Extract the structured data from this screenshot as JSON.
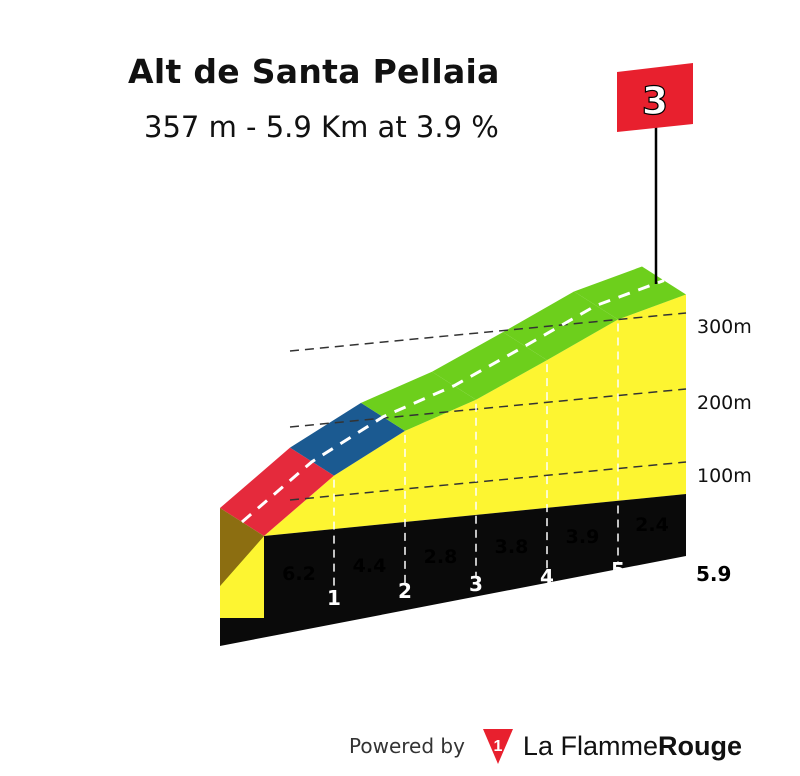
{
  "title": "Alt de Santa Pellaia",
  "subtitle": "357 m - 5.9 Km at 3.9 %",
  "category_flag": "3",
  "footer": {
    "powered_by": "Powered by",
    "brand_part1": "La Flamme",
    "brand_part2": "Rouge",
    "logo_mark": "1"
  },
  "colors": {
    "yellow": "#fdf531",
    "red": "#e52a3c",
    "blue": "#1b5a91",
    "green": "#6dcf1c",
    "flag": "#e8202e",
    "black": "#0a0a0a",
    "start_wall": "#8c6e11"
  },
  "chart_data": {
    "type": "area",
    "title": "Alt de Santa Pellaia",
    "subtitle": "357 m - 5.9 Km at 3.9 %",
    "xlabel": "",
    "ylabel": "",
    "elevation_ticks": [
      "100m",
      "200m",
      "300m"
    ],
    "elevation_tick_values": [
      100,
      200,
      300
    ],
    "km_markers": [
      "1",
      "2",
      "3",
      "4",
      "5"
    ],
    "total_distance_label": "5.9",
    "segments": [
      {
        "gradient": "6.2",
        "color": "red"
      },
      {
        "gradient": "4.4",
        "color": "blue"
      },
      {
        "gradient": "2.8",
        "color": "green"
      },
      {
        "gradient": "3.8",
        "color": "green"
      },
      {
        "gradient": "3.9",
        "color": "green"
      },
      {
        "gradient": "2.4",
        "color": "green"
      }
    ],
    "elevation_at_km": [
      0,
      62,
      106,
      134,
      172,
      211,
      232
    ]
  }
}
